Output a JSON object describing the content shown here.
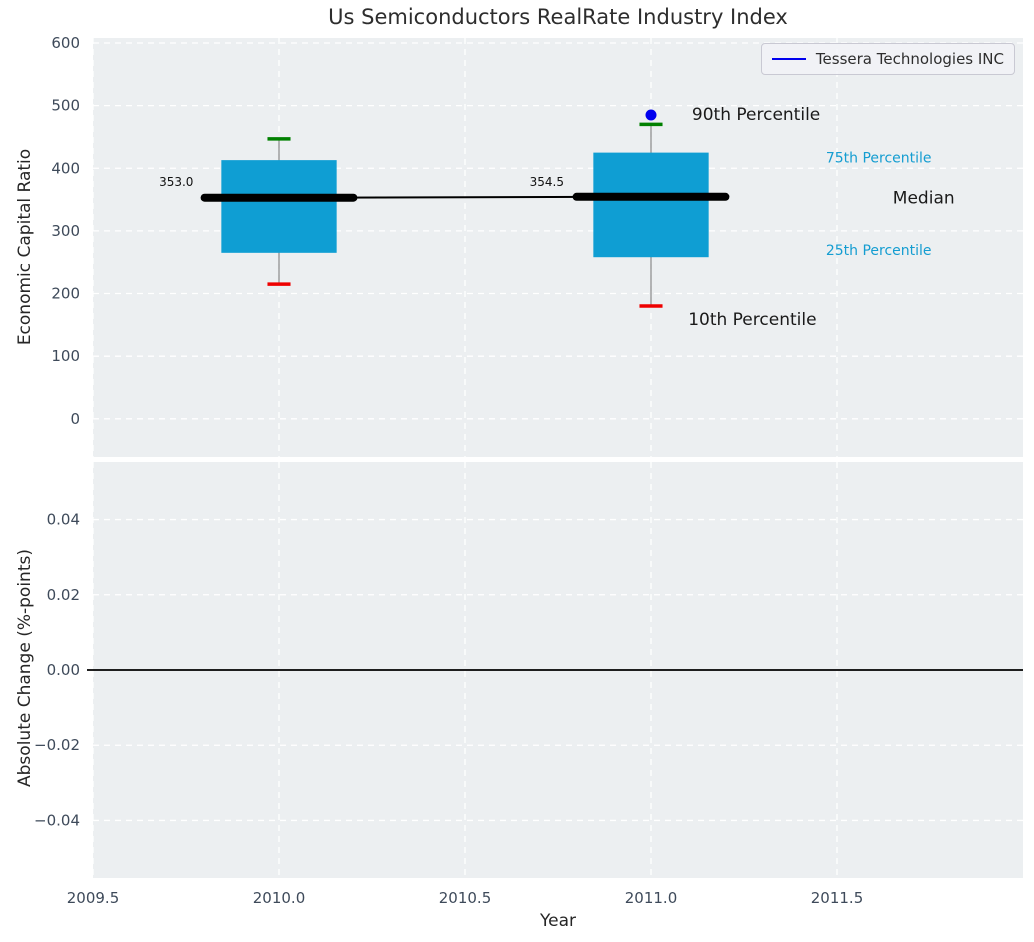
{
  "figure_title": "Us Semiconductors RealRate Industry Index",
  "colors": {
    "axes_background": "#eceff1",
    "grid": "#ffffff",
    "box_fill": "#0f9ed3",
    "median_line": "#000000",
    "whisker": "#888888",
    "p90_cap": "#008000",
    "p10_cap": "#ee0000",
    "company_marker": "#0000ee",
    "legend_line": "#0000ee",
    "tick_label": "#3e4a5a",
    "annotation_cyan": "#149dd1",
    "annotation_black": "#1a1a1a",
    "zero_line": "#000000"
  },
  "legend": {
    "label": "Tessera Technologies INC"
  },
  "chart_data": [
    {
      "type": "boxplot",
      "subplot": "top",
      "title": "Us Semiconductors RealRate Industry Index",
      "ylabel": "Economic Capital Ratio",
      "ylim": [
        -61,
        608
      ],
      "yticks": [
        600,
        500,
        400,
        300,
        200,
        100,
        0
      ],
      "ytick_labels": [
        "600",
        "500",
        "400",
        "300",
        "200",
        "100",
        "0"
      ],
      "xlim": [
        2009.5,
        2012.0
      ],
      "grid": true,
      "legend_position": "upper right",
      "series_label": "Tessera Technologies INC",
      "boxes": [
        {
          "x": 2010.0,
          "p10": 215,
          "q1": 265,
          "median": 353.0,
          "q3": 413,
          "p90": 447,
          "median_label": "353.0"
        },
        {
          "x": 2011.0,
          "p10": 180,
          "q1": 258,
          "median": 354.5,
          "q3": 425,
          "p90": 470,
          "median_label": "354.5"
        }
      ],
      "median_trend": {
        "x": [
          2010.0,
          2011.0
        ],
        "y": [
          353.0,
          354.5
        ]
      },
      "company_points": [
        {
          "x": 2011.0,
          "y": 485
        }
      ],
      "annotations": [
        {
          "text": "90th Percentile",
          "x": 2011.11,
          "y": 485,
          "color": "#1a1a1a",
          "size": 17,
          "anchor": "start"
        },
        {
          "text": "10th Percentile",
          "x": 2011.1,
          "y": 158,
          "color": "#1a1a1a",
          "size": 17,
          "anchor": "start"
        },
        {
          "text": "75th Percentile",
          "x": 2011.47,
          "y": 416,
          "color": "#149dd1",
          "size": 14,
          "anchor": "start"
        },
        {
          "text": "Median",
          "x": 2011.65,
          "y": 352,
          "color": "#1a1a1a",
          "size": 17,
          "anchor": "start"
        },
        {
          "text": "25th Percentile",
          "x": 2011.47,
          "y": 268,
          "color": "#149dd1",
          "size": 14,
          "anchor": "start"
        },
        {
          "text": "353.0",
          "x": 2009.77,
          "y": 377,
          "color": "#111111",
          "size": 12,
          "anchor": "end"
        },
        {
          "text": "354.5",
          "x": 2010.72,
          "y": 377,
          "color": "#111111",
          "size": 12,
          "anchor": "middle"
        }
      ]
    },
    {
      "type": "line",
      "subplot": "bottom",
      "xlabel": "Year",
      "ylabel": "Absolute Change (%-points)",
      "ylim": [
        -0.0553,
        0.0553
      ],
      "yticks": [
        0.04,
        0.02,
        0.0,
        -0.02,
        -0.04
      ],
      "ytick_labels": [
        "0.04",
        "0.02",
        "0.00",
        "−0.02",
        "−0.04"
      ],
      "xticks": [
        2009.5,
        2010.0,
        2010.5,
        2011.0,
        2011.5
      ],
      "xtick_labels": [
        "2009.5",
        "2010.0",
        "2010.5",
        "2011.0",
        "2011.5"
      ],
      "zero_line_y": 0.0,
      "grid": true,
      "values": []
    }
  ]
}
